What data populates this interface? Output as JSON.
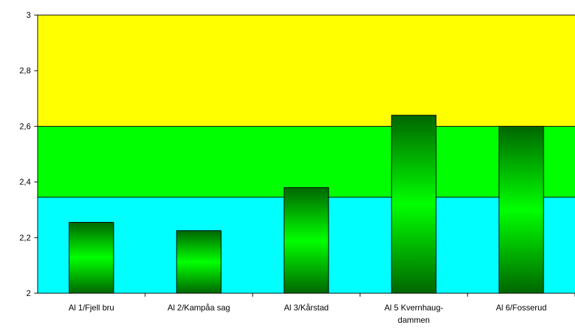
{
  "chart_data": {
    "type": "bar",
    "categories": [
      [
        "Al 1/Fjell bru"
      ],
      [
        "Al 2/Kampåa sag"
      ],
      [
        "Al 3/Kårstad"
      ],
      [
        "Al 5  Kvernhaug-",
        "dammen"
      ],
      [
        "Al 6/Fosserud"
      ]
    ],
    "values": [
      2.255,
      2.225,
      2.38,
      2.64,
      2.6
    ],
    "ylim": [
      2,
      3
    ],
    "yticks": [
      "2",
      "2,2",
      "2,4",
      "2,6",
      "2,8",
      "3"
    ],
    "ytick_values": [
      2,
      2.2,
      2.4,
      2.6,
      2.8,
      3
    ],
    "bands": [
      {
        "from": 2.6,
        "to": 3.0,
        "color": "#FFFF00"
      },
      {
        "from": 2.345,
        "to": 2.6,
        "color": "#00FF00"
      },
      {
        "from": 2.0,
        "to": 2.345,
        "color": "#00FFFF"
      }
    ],
    "bar_colors": {
      "edge": "#006600",
      "center": "#00FF00",
      "outline": "#000000"
    },
    "grid": false,
    "legend": "none"
  }
}
